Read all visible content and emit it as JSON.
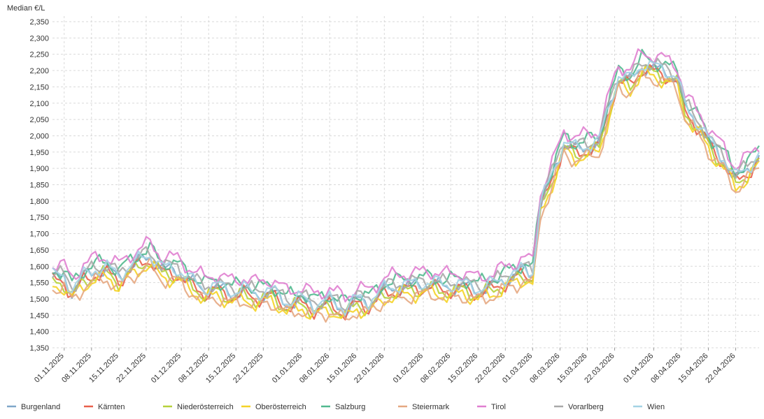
{
  "chart_data": {
    "type": "line",
    "ylabel": "Median €/L",
    "ylim": [
      1.35,
      2.35
    ],
    "y_ticks": [
      "2,350",
      "2,300",
      "2,250",
      "2,200",
      "2,150",
      "2,100",
      "2,050",
      "2,000",
      "1,950",
      "1,900",
      "1,850",
      "1,800",
      "1,750",
      "1,700",
      "1,650",
      "1,600",
      "1,550",
      "1,500",
      "1,450",
      "1,400",
      "1,350"
    ],
    "x_ticks": [
      "01.11.2025",
      "08.11.2025",
      "15.11.2025",
      "22.11.2025",
      "01.12.2025",
      "08.12.2025",
      "15.12.2025",
      "22.12.2025",
      "01.01.2026",
      "08.01.2026",
      "15.01.2026",
      "22.01.2026",
      "01.02.2026",
      "08.02.2026",
      "15.02.2026",
      "22.02.2026",
      "01.03.2026",
      "08.03.2026",
      "15.03.2026",
      "22.03.2026",
      "01.04.2026",
      "08.04.2026",
      "15.04.2026",
      "22.04.2026"
    ],
    "grid": true,
    "legend_position": "bottom",
    "x_start": "2025-10-29",
    "x_end": "2026-04-28",
    "base_series": [
      [
        "2025-10-29",
        1.56
      ],
      [
        "2025-11-01",
        1.555
      ],
      [
        "2025-11-03",
        1.52
      ],
      [
        "2025-11-06",
        1.56
      ],
      [
        "2025-11-09",
        1.58
      ],
      [
        "2025-11-12",
        1.585
      ],
      [
        "2025-11-15",
        1.56
      ],
      [
        "2025-11-18",
        1.59
      ],
      [
        "2025-11-21",
        1.615
      ],
      [
        "2025-11-23",
        1.625
      ],
      [
        "2025-11-26",
        1.585
      ],
      [
        "2025-11-30",
        1.58
      ],
      [
        "2025-12-03",
        1.55
      ],
      [
        "2025-12-07",
        1.52
      ],
      [
        "2025-12-10",
        1.53
      ],
      [
        "2025-12-14",
        1.51
      ],
      [
        "2025-12-17",
        1.52
      ],
      [
        "2025-12-20",
        1.505
      ],
      [
        "2025-12-24",
        1.515
      ],
      [
        "2025-12-28",
        1.48
      ],
      [
        "2026-01-01",
        1.49
      ],
      [
        "2026-01-04",
        1.47
      ],
      [
        "2026-01-08",
        1.485
      ],
      [
        "2026-01-12",
        1.46
      ],
      [
        "2026-01-15",
        1.49
      ],
      [
        "2026-01-18",
        1.48
      ],
      [
        "2026-01-22",
        1.52
      ],
      [
        "2026-01-26",
        1.53
      ],
      [
        "2026-01-30",
        1.535
      ],
      [
        "2026-02-03",
        1.54
      ],
      [
        "2026-02-07",
        1.53
      ],
      [
        "2026-02-11",
        1.535
      ],
      [
        "2026-02-15",
        1.52
      ],
      [
        "2026-02-19",
        1.535
      ],
      [
        "2026-02-23",
        1.56
      ],
      [
        "2026-02-27",
        1.58
      ],
      [
        "2026-03-01",
        1.57
      ],
      [
        "2026-03-03",
        1.78
      ],
      [
        "2026-03-06",
        1.87
      ],
      [
        "2026-03-09",
        1.97
      ],
      [
        "2026-03-12",
        1.95
      ],
      [
        "2026-03-15",
        1.96
      ],
      [
        "2026-03-18",
        1.97
      ],
      [
        "2026-03-21",
        2.1
      ],
      [
        "2026-03-23",
        2.17
      ],
      [
        "2026-03-26",
        2.16
      ],
      [
        "2026-03-29",
        2.21
      ],
      [
        "2026-04-01",
        2.2
      ],
      [
        "2026-04-04",
        2.19
      ],
      [
        "2026-04-07",
        2.17
      ],
      [
        "2026-04-09",
        2.08
      ],
      [
        "2026-04-13",
        2.02
      ],
      [
        "2026-04-16",
        1.96
      ],
      [
        "2026-04-19",
        1.92
      ],
      [
        "2026-04-22",
        1.86
      ],
      [
        "2026-04-25",
        1.89
      ],
      [
        "2026-04-28",
        1.93
      ]
    ],
    "series": [
      {
        "name": "Burgenland",
        "color": "#7fa7c9",
        "offset": 0.005,
        "phase": 0.3
      },
      {
        "name": "Kärnten",
        "color": "#e8604c",
        "offset": -0.005,
        "phase": 1.1
      },
      {
        "name": "Niederösterreich",
        "color": "#b6d13b",
        "offset": -0.008,
        "phase": 2.0
      },
      {
        "name": "Oberösterreich",
        "color": "#f5d327",
        "offset": -0.02,
        "phase": 2.7
      },
      {
        "name": "Salzburg",
        "color": "#52b98f",
        "offset": 0.028,
        "phase": 3.5
      },
      {
        "name": "Steiermark",
        "color": "#e5a882",
        "offset": -0.025,
        "phase": 4.2
      },
      {
        "name": "Tirol",
        "color": "#e07fd0",
        "offset": 0.045,
        "phase": 5.0
      },
      {
        "name": "Vorarlberg",
        "color": "#a9a9a9",
        "offset": 0.018,
        "phase": 5.8
      },
      {
        "name": "Wien",
        "color": "#a4d3e4",
        "offset": 0.012,
        "phase": 0.8
      }
    ]
  }
}
